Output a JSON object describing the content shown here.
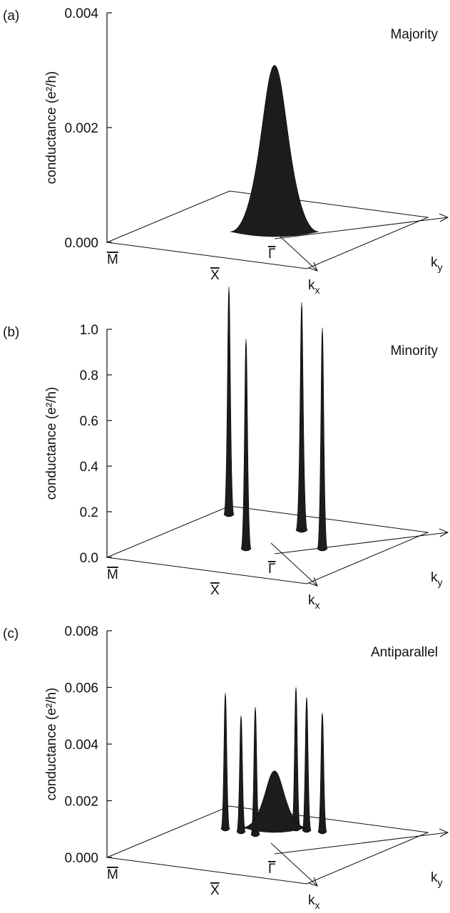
{
  "chart_data": [
    {
      "type": "surface",
      "panel": "(a)",
      "title": "Majority",
      "ylabel": "conductance (e²/h)",
      "ylim": [
        0,
        0.004
      ],
      "yticks": [
        {
          "value": 0,
          "label": "0.000"
        },
        {
          "value": 0.002,
          "label": "0.002"
        },
        {
          "value": 0.004,
          "label": "0.004"
        }
      ],
      "points": [
        "M",
        "X",
        "Γ"
      ],
      "kx": {
        "base": "k",
        "sub": "x"
      },
      "ky": {
        "base": "k",
        "sub": "y"
      },
      "values": [
        0.0029
      ]
    },
    {
      "type": "surface",
      "panel": "(b)",
      "title": "Minority",
      "ylabel": "conductance (e²/h)",
      "ylim": [
        0,
        1
      ],
      "yticks": [
        {
          "value": 0,
          "label": "0.0"
        },
        {
          "value": 0.2,
          "label": "0.2"
        },
        {
          "value": 0.4,
          "label": "0.4"
        },
        {
          "value": 0.6,
          "label": "0.6"
        },
        {
          "value": 0.8,
          "label": "0.8"
        },
        {
          "value": 1,
          "label": "1.0"
        }
      ],
      "points": [
        "M",
        "X",
        "Γ"
      ],
      "kx": {
        "base": "k",
        "sub": "x"
      },
      "ky": {
        "base": "k",
        "sub": "y"
      },
      "values": [
        1.0,
        0.92,
        1.0,
        0.97
      ]
    },
    {
      "type": "surface",
      "panel": "(c)",
      "title": "Antiparallel",
      "ylabel": "conductance (e²/h)",
      "ylim": [
        0,
        0.008
      ],
      "yticks": [
        {
          "value": 0,
          "label": "0.000"
        },
        {
          "value": 0.002,
          "label": "0.002"
        },
        {
          "value": 0.004,
          "label": "0.004"
        },
        {
          "value": 0.006,
          "label": "0.006"
        },
        {
          "value": 0.008,
          "label": "0.008"
        }
      ],
      "points": [
        "M",
        "X",
        "Γ"
      ],
      "kx": {
        "base": "k",
        "sub": "x"
      },
      "ky": {
        "base": "k",
        "sub": "y"
      },
      "values": [
        0.0048,
        0.0041,
        0.0045,
        0.005,
        0.0047,
        0.0042,
        0.002
      ]
    }
  ]
}
